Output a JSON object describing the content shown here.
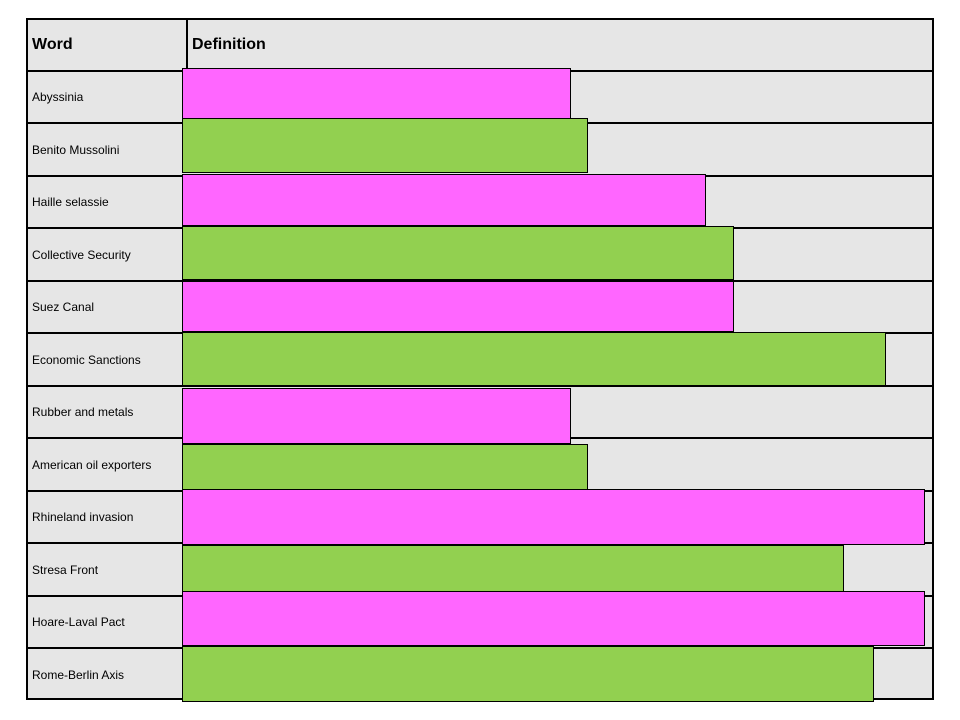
{
  "header": {
    "word_label": "Word",
    "definition_label": "Definition"
  },
  "colors": {
    "pink": "#ff66ff",
    "green": "#92d050",
    "cell_bg": "#e6e6e6",
    "border": "#000000"
  },
  "rows": [
    {
      "word": "Abyssinia",
      "cover_color": "pink"
    },
    {
      "word": "Benito Mussolini",
      "cover_color": "green"
    },
    {
      "word": "Haille selassie",
      "cover_color": "pink"
    },
    {
      "word": "Collective Security",
      "cover_color": "green"
    },
    {
      "word": "Suez Canal",
      "cover_color": "pink"
    },
    {
      "word": "Economic Sanctions",
      "cover_color": "green"
    },
    {
      "word": "Rubber and metals",
      "cover_color": "pink"
    },
    {
      "word": "American oil exporters",
      "cover_color": "green"
    },
    {
      "word": "Rhineland invasion",
      "cover_color": "pink"
    },
    {
      "word": "Stresa Front",
      "cover_color": "green"
    },
    {
      "word": "Hoare-Laval Pact",
      "cover_color": "pink"
    },
    {
      "word": "Rome-Berlin Axis",
      "cover_color": "green"
    }
  ]
}
